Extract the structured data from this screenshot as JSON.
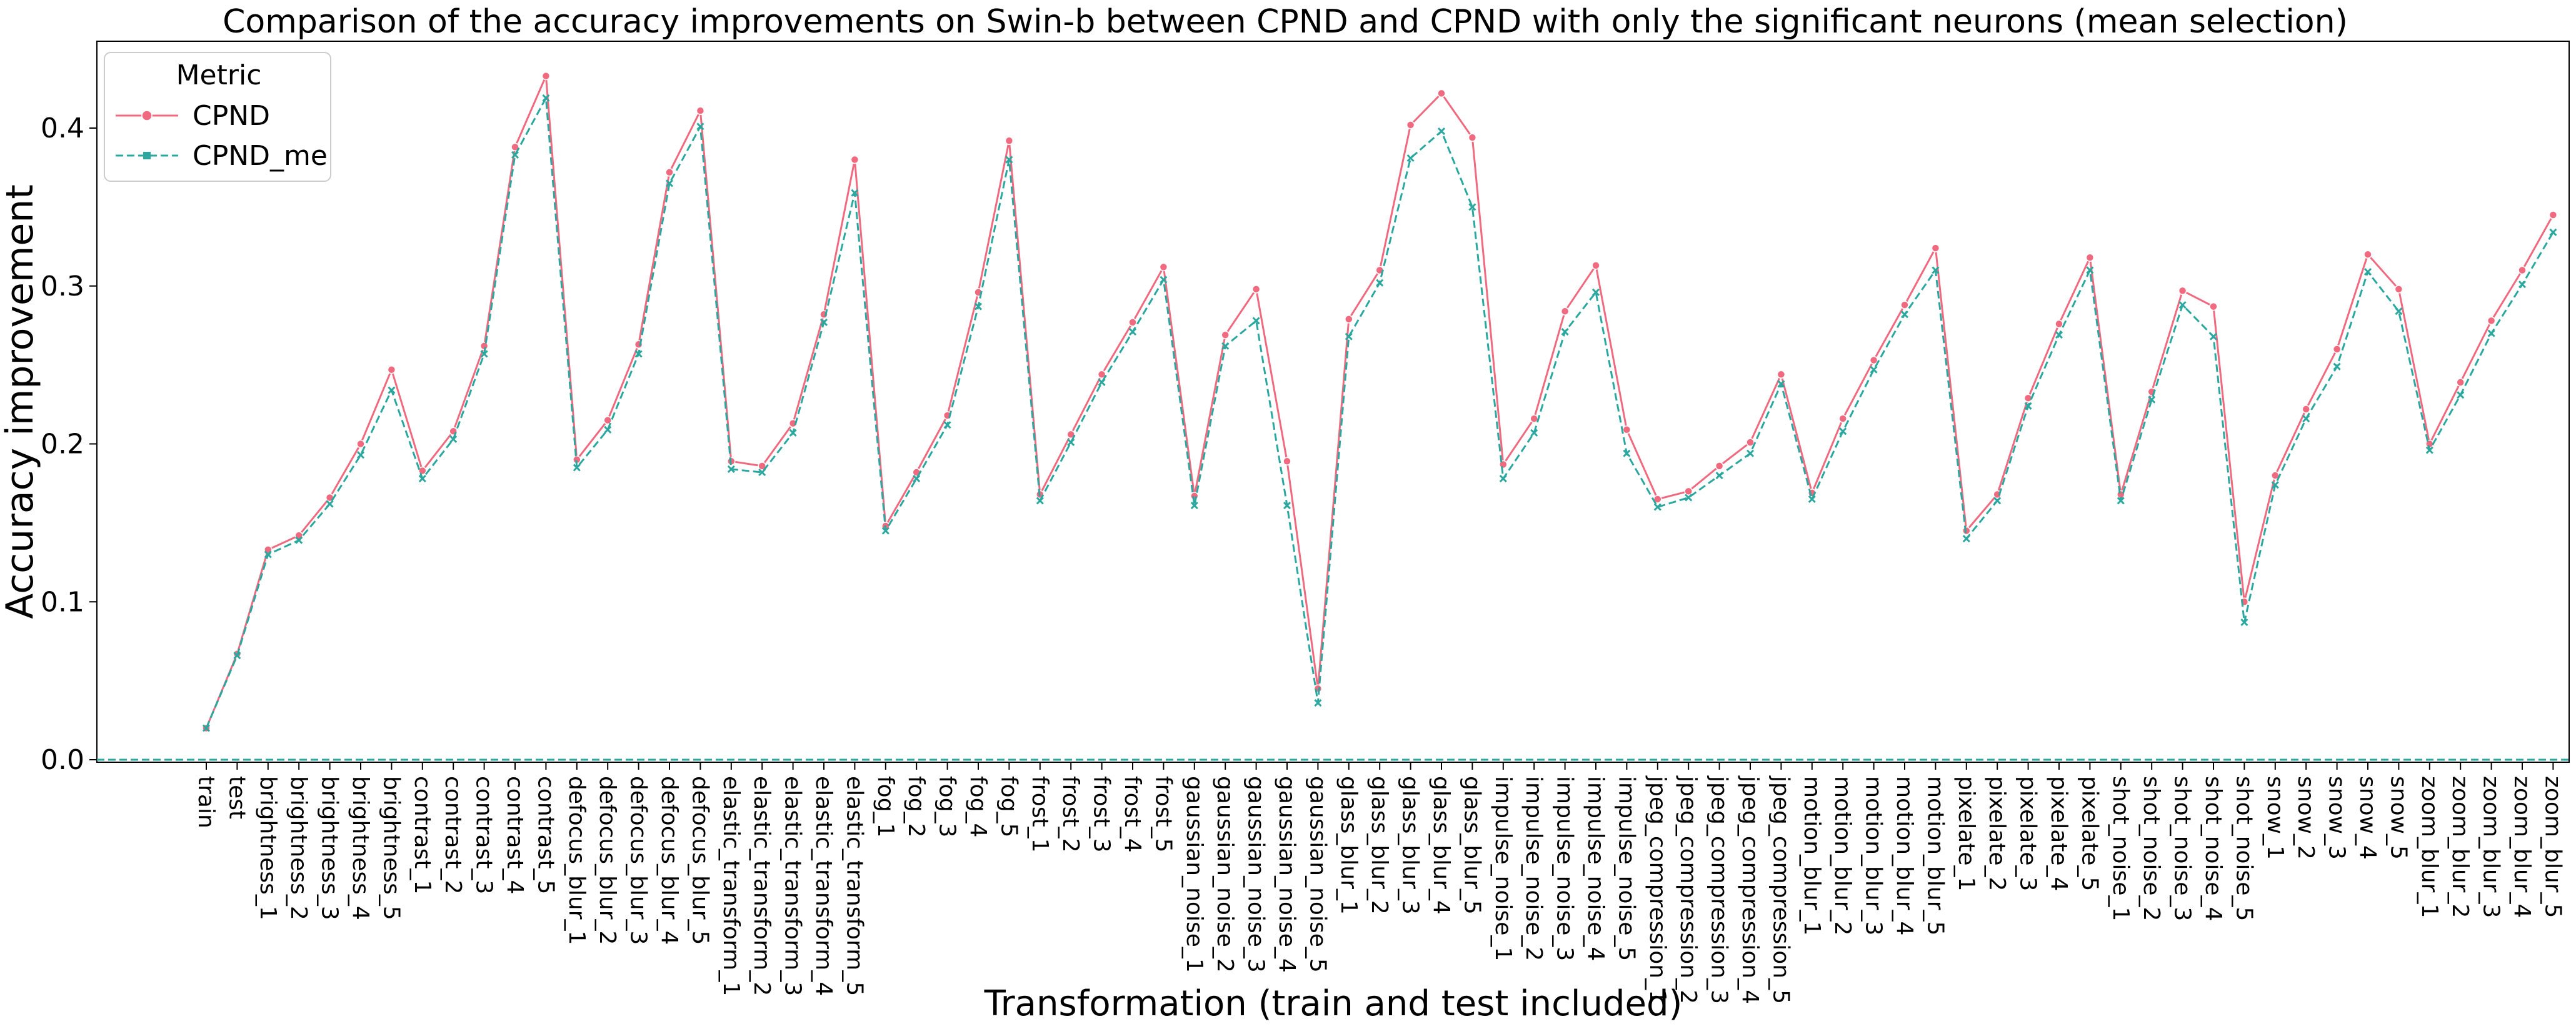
{
  "chart_data": {
    "type": "line",
    "title": "Comparison of the accuracy improvements on Swin-b between CPND and CPND with only the significant neurons (mean selection)",
    "xlabel": "Transformation (train and test included)",
    "ylabel": "Accuracy improvement",
    "ylim": [
      0,
      0.455
    ],
    "yticks": [
      0.0,
      0.1,
      0.2,
      0.3,
      0.4
    ],
    "ytick_labels": [
      "0.0",
      "0.1",
      "0.2",
      "0.3",
      "0.4"
    ],
    "grid": false,
    "legend": {
      "title": "Metric",
      "position": "top-left"
    },
    "categories": [
      "train",
      "test",
      "brightness_1",
      "brightness_2",
      "brightness_3",
      "brightness_4",
      "brightness_5",
      "contrast_1",
      "contrast_2",
      "contrast_3",
      "contrast_4",
      "contrast_5",
      "defocus_blur_1",
      "defocus_blur_2",
      "defocus_blur_3",
      "defocus_blur_4",
      "defocus_blur_5",
      "elastic_transform_1",
      "elastic_transform_2",
      "elastic_transform_3",
      "elastic_transform_4",
      "elastic_transform_5",
      "fog_1",
      "fog_2",
      "fog_3",
      "fog_4",
      "fog_5",
      "frost_1",
      "frost_2",
      "frost_3",
      "frost_4",
      "frost_5",
      "gaussian_noise_1",
      "gaussian_noise_2",
      "gaussian_noise_3",
      "gaussian_noise_4",
      "gaussian_noise_5",
      "glass_blur_1",
      "glass_blur_2",
      "glass_blur_3",
      "glass_blur_4",
      "glass_blur_5",
      "impulse_noise_1",
      "impulse_noise_2",
      "impulse_noise_3",
      "impulse_noise_4",
      "impulse_noise_5",
      "jpeg_compression_1",
      "jpeg_compression_2",
      "jpeg_compression_3",
      "jpeg_compression_4",
      "jpeg_compression_5",
      "motion_blur_1",
      "motion_blur_2",
      "motion_blur_3",
      "motion_blur_4",
      "motion_blur_5",
      "pixelate_1",
      "pixelate_2",
      "pixelate_3",
      "pixelate_4",
      "pixelate_5",
      "shot_noise_1",
      "shot_noise_2",
      "shot_noise_3",
      "shot_noise_4",
      "shot_noise_5",
      "snow_1",
      "snow_2",
      "snow_3",
      "snow_4",
      "snow_5",
      "zoom_blur_1",
      "zoom_blur_2",
      "zoom_blur_3",
      "zoom_blur_4",
      "zoom_blur_5"
    ],
    "series": [
      {
        "name": "CPND",
        "color": "#f0697e",
        "linestyle": "solid",
        "marker": "circle",
        "values": [
          0.02,
          0.067,
          0.133,
          0.142,
          0.166,
          0.2,
          0.247,
          0.183,
          0.208,
          0.262,
          0.388,
          0.433,
          0.19,
          0.215,
          0.263,
          0.372,
          0.411,
          0.189,
          0.186,
          0.213,
          0.282,
          0.38,
          0.148,
          0.182,
          0.218,
          0.296,
          0.392,
          0.168,
          0.206,
          0.244,
          0.277,
          0.312,
          0.167,
          0.269,
          0.298,
          0.189,
          0.045,
          0.279,
          0.31,
          0.402,
          0.422,
          0.394,
          0.187,
          0.216,
          0.284,
          0.313,
          0.209,
          0.165,
          0.17,
          0.186,
          0.201,
          0.244,
          0.169,
          0.216,
          0.253,
          0.288,
          0.324,
          0.145,
          0.168,
          0.229,
          0.276,
          0.318,
          0.168,
          0.233,
          0.297,
          0.287,
          0.1,
          0.18,
          0.222,
          0.26,
          0.32,
          0.298,
          0.2,
          0.239,
          0.278,
          0.31,
          0.345
        ]
      },
      {
        "name": "CPND_me",
        "color": "#2aa8a0",
        "linestyle": "dashed",
        "marker": "x",
        "values": [
          0.02,
          0.066,
          0.13,
          0.139,
          0.162,
          0.193,
          0.234,
          0.178,
          0.203,
          0.257,
          0.383,
          0.419,
          0.185,
          0.209,
          0.257,
          0.365,
          0.401,
          0.184,
          0.182,
          0.207,
          0.277,
          0.359,
          0.145,
          0.178,
          0.212,
          0.287,
          0.38,
          0.164,
          0.201,
          0.239,
          0.271,
          0.304,
          0.161,
          0.262,
          0.278,
          0.161,
          0.036,
          0.268,
          0.302,
          0.381,
          0.398,
          0.35,
          0.178,
          0.207,
          0.271,
          0.296,
          0.194,
          0.16,
          0.166,
          0.18,
          0.194,
          0.238,
          0.165,
          0.208,
          0.247,
          0.282,
          0.31,
          0.14,
          0.164,
          0.224,
          0.269,
          0.31,
          0.164,
          0.228,
          0.288,
          0.268,
          0.087,
          0.174,
          0.216,
          0.249,
          0.309,
          0.284,
          0.196,
          0.231,
          0.27,
          0.301,
          0.334
        ]
      }
    ]
  }
}
